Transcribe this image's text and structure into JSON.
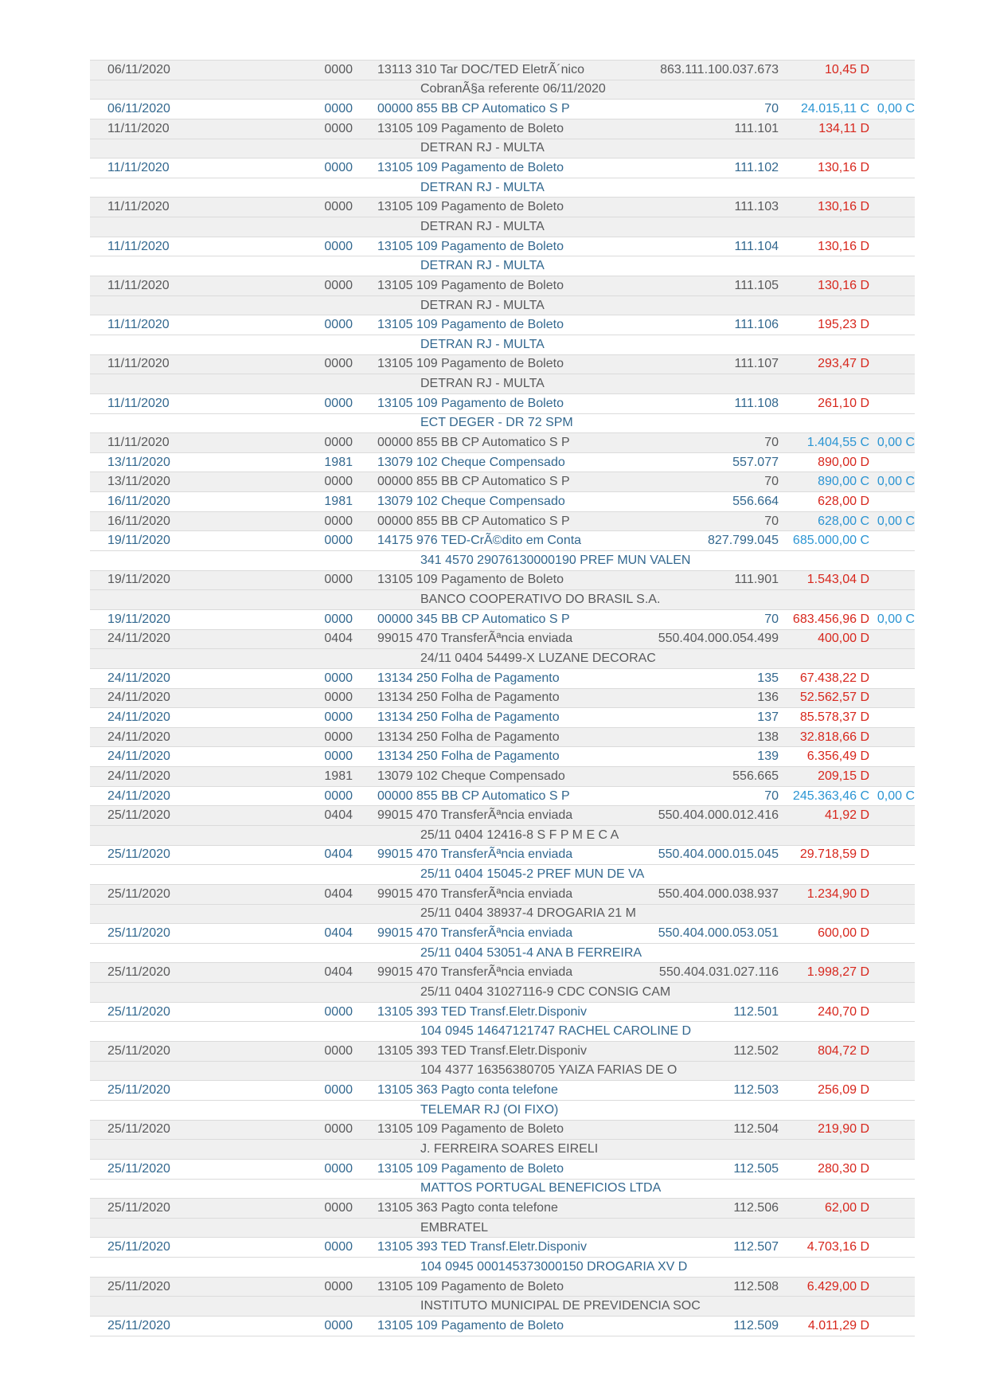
{
  "colors": {
    "debit_value": "#d7271d",
    "credit_value": "#2b95d3",
    "row_shaded_bg": "#f0f0f0",
    "row_plain_bg": "#ffffff",
    "text_shaded_row": "#58595b",
    "text_plain_row": "#33688f",
    "row_border": "#dbdbdb"
  },
  "statement": {
    "transactions": [
      {
        "date": "06/11/2020",
        "agency": "0000",
        "description": "13113 310 Tar DOC/TED EletrÃ´nico",
        "document": "863.111.100.037.673",
        "value": "10,45 D",
        "balance": null,
        "detail": "CobranÃ§a referente 06/11/2020"
      },
      {
        "date": "06/11/2020",
        "agency": "0000",
        "description": "00000 855 BB CP Automatico S P",
        "document": "70",
        "value": "24.015,11 C",
        "balance": "0,00 C",
        "detail": null
      },
      {
        "date": "11/11/2020",
        "agency": "0000",
        "description": "13105 109 Pagamento de Boleto",
        "document": "111.101",
        "value": "134,11 D",
        "balance": null,
        "detail": "DETRAN RJ - MULTA"
      },
      {
        "date": "11/11/2020",
        "agency": "0000",
        "description": "13105 109 Pagamento de Boleto",
        "document": "111.102",
        "value": "130,16 D",
        "balance": null,
        "detail": "DETRAN RJ - MULTA"
      },
      {
        "date": "11/11/2020",
        "agency": "0000",
        "description": "13105 109 Pagamento de Boleto",
        "document": "111.103",
        "value": "130,16 D",
        "balance": null,
        "detail": "DETRAN RJ - MULTA"
      },
      {
        "date": "11/11/2020",
        "agency": "0000",
        "description": "13105 109 Pagamento de Boleto",
        "document": "111.104",
        "value": "130,16 D",
        "balance": null,
        "detail": "DETRAN RJ - MULTA"
      },
      {
        "date": "11/11/2020",
        "agency": "0000",
        "description": "13105 109 Pagamento de Boleto",
        "document": "111.105",
        "value": "130,16 D",
        "balance": null,
        "detail": "DETRAN RJ - MULTA"
      },
      {
        "date": "11/11/2020",
        "agency": "0000",
        "description": "13105 109 Pagamento de Boleto",
        "document": "111.106",
        "value": "195,23 D",
        "balance": null,
        "detail": "DETRAN RJ - MULTA"
      },
      {
        "date": "11/11/2020",
        "agency": "0000",
        "description": "13105 109 Pagamento de Boleto",
        "document": "111.107",
        "value": "293,47 D",
        "balance": null,
        "detail": "DETRAN RJ - MULTA"
      },
      {
        "date": "11/11/2020",
        "agency": "0000",
        "description": "13105 109 Pagamento de Boleto",
        "document": "111.108",
        "value": "261,10 D",
        "balance": null,
        "detail": "ECT DEGER - DR 72 SPM"
      },
      {
        "date": "11/11/2020",
        "agency": "0000",
        "description": "00000 855 BB CP Automatico S P",
        "document": "70",
        "value": "1.404,55 C",
        "balance": "0,00 C",
        "detail": null
      },
      {
        "date": "13/11/2020",
        "agency": "1981",
        "description": "13079 102 Cheque Compensado",
        "document": "557.077",
        "value": "890,00 D",
        "balance": null,
        "detail": null
      },
      {
        "date": "13/11/2020",
        "agency": "0000",
        "description": "00000 855 BB CP Automatico S P",
        "document": "70",
        "value": "890,00 C",
        "balance": "0,00 C",
        "detail": null
      },
      {
        "date": "16/11/2020",
        "agency": "1981",
        "description": "13079 102 Cheque Compensado",
        "document": "556.664",
        "value": "628,00 D",
        "balance": null,
        "detail": null
      },
      {
        "date": "16/11/2020",
        "agency": "0000",
        "description": "00000 855 BB CP Automatico S P",
        "document": "70",
        "value": "628,00 C",
        "balance": "0,00 C",
        "detail": null
      },
      {
        "date": "19/11/2020",
        "agency": "0000",
        "description": "14175 976 TED-CrÃ©dito em Conta",
        "document": "827.799.045",
        "value": "685.000,00 C",
        "balance": null,
        "detail": "341 4570 29076130000190 PREF MUN VALEN"
      },
      {
        "date": "19/11/2020",
        "agency": "0000",
        "description": "13105 109 Pagamento de Boleto",
        "document": "111.901",
        "value": "1.543,04 D",
        "balance": null,
        "detail": "BANCO COOPERATIVO DO BRASIL S.A."
      },
      {
        "date": "19/11/2020",
        "agency": "0000",
        "description": "00000 345 BB CP Automatico S P",
        "document": "70",
        "value": "683.456,96 D",
        "balance": "0,00 C",
        "detail": null
      },
      {
        "date": "24/11/2020",
        "agency": "0404",
        "description": "99015 470 TransferÃªncia enviada",
        "document": "550.404.000.054.499",
        "value": "400,00 D",
        "balance": null,
        "detail": "24/11 0404 54499-X LUZANE DECORAC"
      },
      {
        "date": "24/11/2020",
        "agency": "0000",
        "description": "13134 250 Folha de Pagamento",
        "document": "135",
        "value": "67.438,22 D",
        "balance": null,
        "detail": null
      },
      {
        "date": "24/11/2020",
        "agency": "0000",
        "description": "13134 250 Folha de Pagamento",
        "document": "136",
        "value": "52.562,57 D",
        "balance": null,
        "detail": null
      },
      {
        "date": "24/11/2020",
        "agency": "0000",
        "description": "13134 250 Folha de Pagamento",
        "document": "137",
        "value": "85.578,37 D",
        "balance": null,
        "detail": null
      },
      {
        "date": "24/11/2020",
        "agency": "0000",
        "description": "13134 250 Folha de Pagamento",
        "document": "138",
        "value": "32.818,66 D",
        "balance": null,
        "detail": null
      },
      {
        "date": "24/11/2020",
        "agency": "0000",
        "description": "13134 250 Folha de Pagamento",
        "document": "139",
        "value": "6.356,49 D",
        "balance": null,
        "detail": null
      },
      {
        "date": "24/11/2020",
        "agency": "1981",
        "description": "13079 102 Cheque Compensado",
        "document": "556.665",
        "value": "209,15 D",
        "balance": null,
        "detail": null
      },
      {
        "date": "24/11/2020",
        "agency": "0000",
        "description": "00000 855 BB CP Automatico S P",
        "document": "70",
        "value": "245.363,46 C",
        "balance": "0,00 C",
        "detail": null
      },
      {
        "date": "25/11/2020",
        "agency": "0404",
        "description": "99015 470 TransferÃªncia enviada",
        "document": "550.404.000.012.416",
        "value": "41,92 D",
        "balance": null,
        "detail": "25/11 0404 12416-8 S F P M E C A"
      },
      {
        "date": "25/11/2020",
        "agency": "0404",
        "description": "99015 470 TransferÃªncia enviada",
        "document": "550.404.000.015.045",
        "value": "29.718,59 D",
        "balance": null,
        "detail": "25/11 0404 15045-2 PREF MUN DE VA"
      },
      {
        "date": "25/11/2020",
        "agency": "0404",
        "description": "99015 470 TransferÃªncia enviada",
        "document": "550.404.000.038.937",
        "value": "1.234,90 D",
        "balance": null,
        "detail": "25/11 0404 38937-4 DROGARIA 21 M"
      },
      {
        "date": "25/11/2020",
        "agency": "0404",
        "description": "99015 470 TransferÃªncia enviada",
        "document": "550.404.000.053.051",
        "value": "600,00 D",
        "balance": null,
        "detail": "25/11 0404 53051-4 ANA B FERREIRA"
      },
      {
        "date": "25/11/2020",
        "agency": "0404",
        "description": "99015 470 TransferÃªncia enviada",
        "document": "550.404.031.027.116",
        "value": "1.998,27 D",
        "balance": null,
        "detail": "25/11 0404 31027116-9 CDC CONSIG CAM"
      },
      {
        "date": "25/11/2020",
        "agency": "0000",
        "description": "13105 393 TED Transf.Eletr.Disponiv",
        "document": "112.501",
        "value": "240,70 D",
        "balance": null,
        "detail": "104 0945 14647121747 RACHEL CAROLINE D"
      },
      {
        "date": "25/11/2020",
        "agency": "0000",
        "description": "13105 393 TED Transf.Eletr.Disponiv",
        "document": "112.502",
        "value": "804,72 D",
        "balance": null,
        "detail": "104 4377 16356380705 YAIZA FARIAS DE O"
      },
      {
        "date": "25/11/2020",
        "agency": "0000",
        "description": "13105 363 Pagto conta telefone",
        "document": "112.503",
        "value": "256,09 D",
        "balance": null,
        "detail": "TELEMAR RJ (OI FIXO)"
      },
      {
        "date": "25/11/2020",
        "agency": "0000",
        "description": "13105 109 Pagamento de Boleto",
        "document": "112.504",
        "value": "219,90 D",
        "balance": null,
        "detail": "J. FERREIRA SOARES EIRELI"
      },
      {
        "date": "25/11/2020",
        "agency": "0000",
        "description": "13105 109 Pagamento de Boleto",
        "document": "112.505",
        "value": "280,30 D",
        "balance": null,
        "detail": "MATTOS PORTUGAL BENEFICIOS LTDA"
      },
      {
        "date": "25/11/2020",
        "agency": "0000",
        "description": "13105 363 Pagto conta telefone",
        "document": "112.506",
        "value": "62,00 D",
        "balance": null,
        "detail": "EMBRATEL"
      },
      {
        "date": "25/11/2020",
        "agency": "0000",
        "description": "13105 393 TED Transf.Eletr.Disponiv",
        "document": "112.507",
        "value": "4.703,16 D",
        "balance": null,
        "detail": "104 0945 000145373000150 DROGARIA XV D"
      },
      {
        "date": "25/11/2020",
        "agency": "0000",
        "description": "13105 109 Pagamento de Boleto",
        "document": "112.508",
        "value": "6.429,00 D",
        "balance": null,
        "detail": "INSTITUTO MUNICIPAL DE PREVIDENCIA SOC"
      },
      {
        "date": "25/11/2020",
        "agency": "0000",
        "description": "13105 109 Pagamento de Boleto",
        "document": "112.509",
        "value": "4.011,29 D",
        "balance": null,
        "detail": null
      }
    ]
  }
}
